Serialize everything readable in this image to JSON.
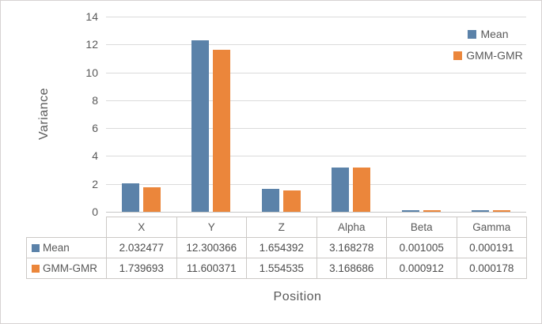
{
  "figure": {
    "ylabel": "Variance",
    "xlabel": "Position"
  },
  "chart_data": {
    "type": "bar",
    "title": "",
    "xlabel": "Position",
    "ylabel": "Variance",
    "categories": [
      "X",
      "Y",
      "Z",
      "Alpha",
      "Beta",
      "Gamma"
    ],
    "series": [
      {
        "name": "Mean",
        "color": "#5b82a9",
        "values": [
          2.032477,
          12.300366,
          1.654392,
          3.168278,
          0.001005,
          0.000191
        ]
      },
      {
        "name": "GMM-GMR",
        "color": "#eb863b",
        "values": [
          1.739693,
          11.600371,
          1.554535,
          3.168686,
          0.000912,
          0.000178
        ]
      }
    ],
    "ylim": [
      0,
      14
    ],
    "yticks": [
      0,
      2,
      4,
      6,
      8,
      10,
      12,
      14
    ],
    "grid": true,
    "legend_position": "top-right",
    "data_table_shown": true,
    "value_decimals": 6
  },
  "colors": {
    "gridline": "#dbdbdb",
    "axis_line": "#c6c6c6",
    "table_border": "#ccc9c6",
    "text": "#595959"
  }
}
